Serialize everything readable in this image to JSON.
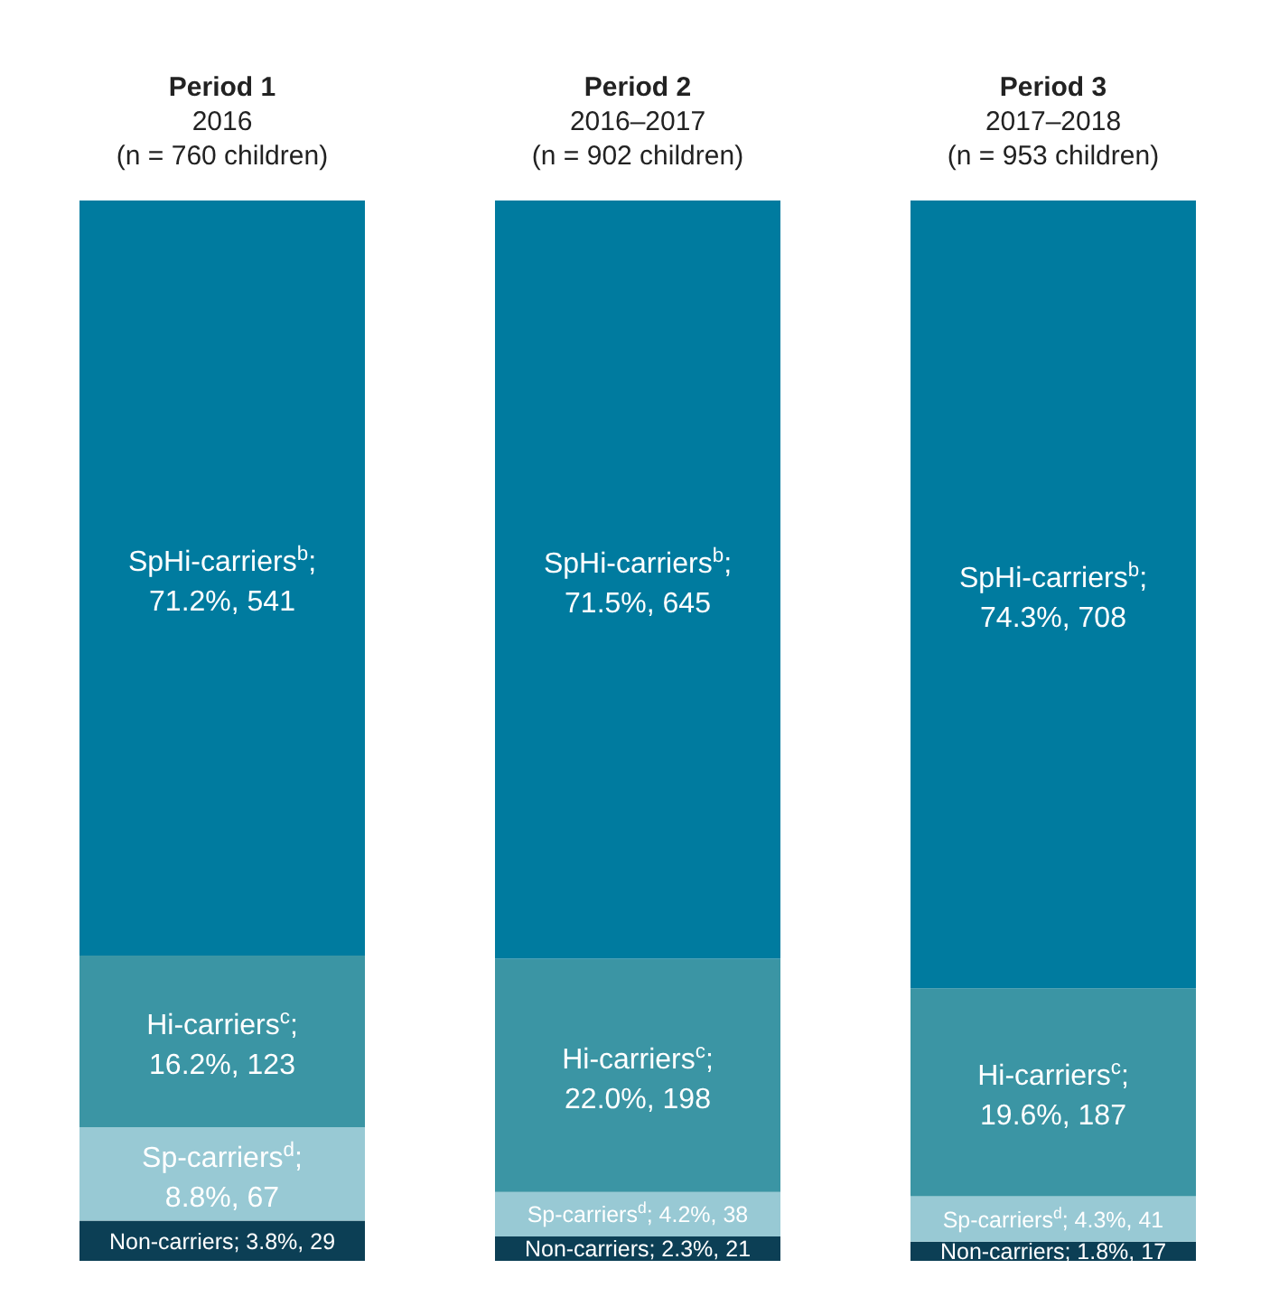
{
  "chart_data": {
    "type": "bar",
    "stacked": true,
    "categories": [
      "Period 1\n2016\n(n = 760 children)",
      "Period 2\n2016–2017\n(n = 902 children)",
      "Period 3\n2017–2018\n(n = 953 children)"
    ],
    "series": [
      {
        "color": "#0c3f55",
        "values": [
          3.8,
          2.3,
          1.8
        ],
        "value_labels": [
          "Non-carriers; 3.8%, 29",
          "Non-carriers; 2.3%, 21",
          "Non-carriers; 1.8%, 17"
        ]
      },
      {
        "color": "#98c9d4",
        "values": [
          8.8,
          4.2,
          4.3
        ],
        "value_labels": [
          "Sp-carriers$^{d}$; 8.8%, 67",
          "Sp-carriers$^{d}$; 4.2%, 38",
          "Sp-carriers$^{d}$; 4.3%, 41"
        ]
      },
      {
        "color": "#3b95a4",
        "values": [
          16.2,
          22.0,
          19.6
        ],
        "value_labels": [
          "Hi-carriers$^{c}$; 16.2%, 123",
          "Hi-carriers$^{c}$; 22.0%, 198",
          "Hi-carriers$^{c}$; 19.6%, 187"
        ]
      },
      {
        "color": "#007b9f",
        "values": [
          71.2,
          71.5,
          74.3
        ],
        "value_labels": [
          "SpHi-carriers$^{b}$; 71.2%, 541",
          "SpHi-carriers$^{b}$; 71.5%, 645",
          "SpHi-carriers$^{b}$; 74.3%, 708"
        ]
      }
    ]
  }
}
